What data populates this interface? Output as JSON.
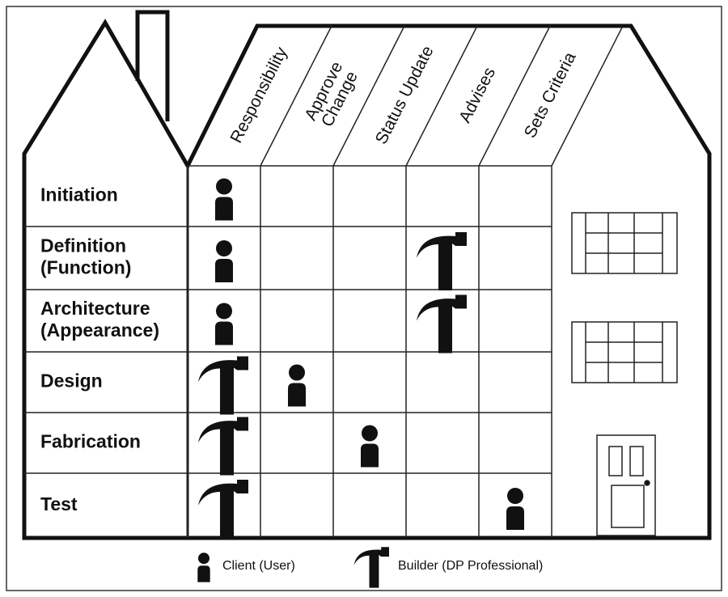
{
  "columns": [
    [
      "Responsibility"
    ],
    [
      "Approve",
      "Change"
    ],
    [
      "Status Update"
    ],
    [
      "Advises"
    ],
    [
      "Sets Criteria"
    ]
  ],
  "rows": [
    [
      "Initiation"
    ],
    [
      "Definition",
      "(Function)"
    ],
    [
      "Architecture",
      "(Appearance)"
    ],
    [
      "Design"
    ],
    [
      "Fabrication"
    ],
    [
      "Test"
    ]
  ],
  "legend": {
    "client": "Client (User)",
    "builder": "Builder (DP Professional)"
  }
}
